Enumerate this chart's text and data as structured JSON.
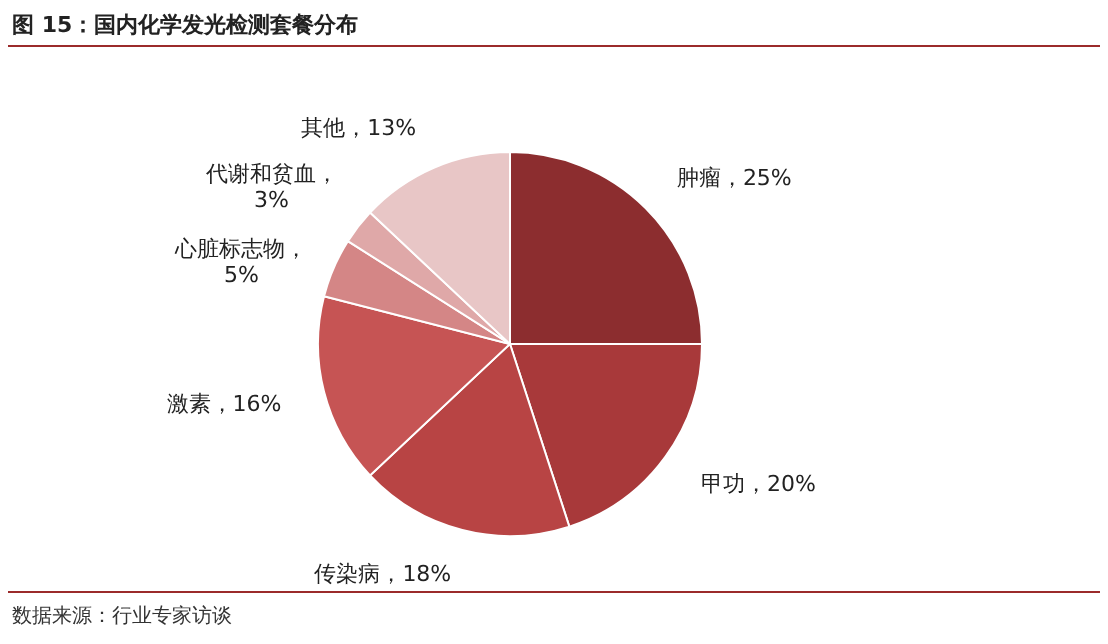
{
  "chart_data": {
    "type": "pie",
    "title": "图 15：国内化学发光检测套餐分布",
    "categories": [
      "肿瘤",
      "甲功",
      "传染病",
      "激素",
      "心脏标志物",
      "代谢和贫血",
      "其他"
    ],
    "values": [
      25,
      20,
      18,
      16,
      5,
      3,
      13
    ],
    "colors": [
      "#8c2d2f",
      "#a8393a",
      "#b84444",
      "#c65454",
      "#d48686",
      "#dfa8a8",
      "#e8c6c6"
    ],
    "value_labels": [
      "，25%",
      "，20%",
      "，18%",
      "，16%",
      "，5%",
      "，3%",
      "，13%"
    ],
    "annotations": [
      "数据来源：行业专家访谈"
    ]
  }
}
